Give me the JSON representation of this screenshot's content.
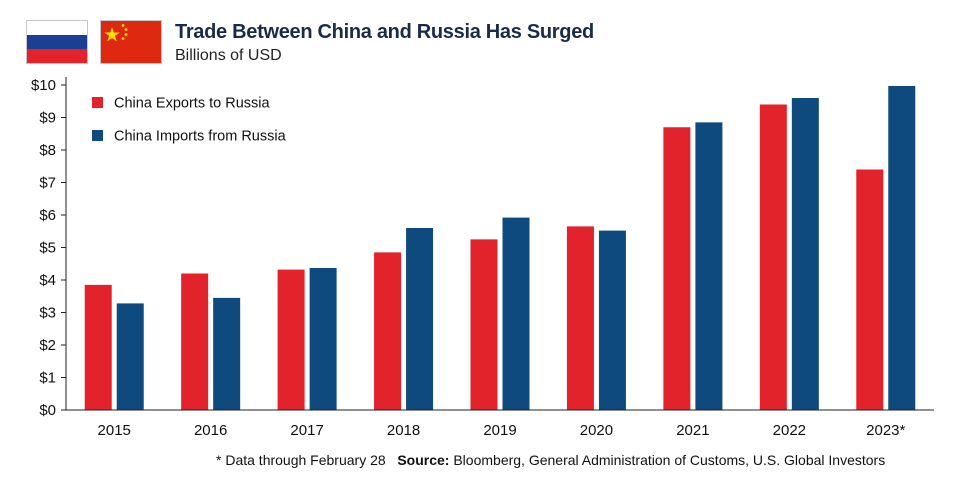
{
  "header": {
    "title": "Trade Between China and Russia Has Surged",
    "subtitle": "Billions of USD"
  },
  "footnote": {
    "note": "* Data through February 28",
    "source_label": "Source:",
    "source_text": "Bloomberg, General Administration of Customs, U.S. Global Investors"
  },
  "flags": {
    "russia": "russia-flag-icon",
    "china": "china-flag-icon"
  },
  "colors": {
    "exports": "#e3232c",
    "imports": "#0f4a7e",
    "title": "#1a2b4a"
  },
  "chart_data": {
    "type": "bar",
    "title": "Trade Between China and Russia Has Surged",
    "subtitle": "Billions of USD",
    "categories": [
      "2015",
      "2016",
      "2017",
      "2018",
      "2019",
      "2020",
      "2021",
      "2022",
      "2023*"
    ],
    "series": [
      {
        "name": "China Exports to Russia",
        "color": "#e3232c",
        "values": [
          3.85,
          4.2,
          4.32,
          4.85,
          5.25,
          5.65,
          8.7,
          9.4,
          7.4
        ]
      },
      {
        "name": "China Imports from Russia",
        "color": "#0f4a7e",
        "values": [
          3.28,
          3.45,
          4.37,
          5.6,
          5.92,
          5.52,
          8.85,
          9.6,
          9.97
        ]
      }
    ],
    "ylim": [
      0,
      10
    ],
    "yticks": [
      0,
      1,
      2,
      3,
      4,
      5,
      6,
      7,
      8,
      9,
      10
    ],
    "ytick_labels": [
      "$0",
      "$1",
      "$2",
      "$3",
      "$4",
      "$5",
      "$6",
      "$7",
      "$8",
      "$9",
      "$10"
    ],
    "xlabel": "",
    "ylabel": "",
    "grid": false,
    "legend": "top-left"
  }
}
